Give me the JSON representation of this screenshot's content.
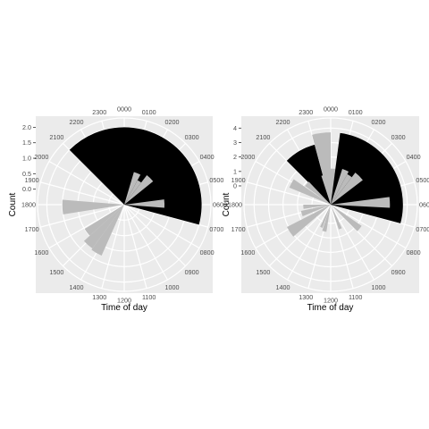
{
  "chart_data": [
    {
      "type": "bar",
      "coord": "polar",
      "xlabel": "Time of day",
      "ylabel": "Count",
      "ylim": [
        -0.5,
        2.3
      ],
      "yticks": [
        0,
        0.5,
        1,
        1.5,
        2
      ],
      "ytick_labels": [
        "0.0",
        "0.5",
        "1.0",
        "1.5",
        "2.0"
      ],
      "hour_labels": [
        "0000",
        "0100",
        "0200",
        "0300",
        "0400",
        "0500",
        "0600",
        "0700",
        "0800",
        "0900",
        "1000",
        "1100",
        "1200",
        "1300",
        "1400",
        "1500",
        "1600",
        "1700",
        "1800",
        "1900",
        "2000",
        "2100",
        "2200",
        "2300"
      ],
      "bars": [
        {
          "start": 0.0,
          "end": 7.0,
          "value": 2.0,
          "color": "#000000"
        },
        {
          "start": 1.1,
          "end": 1.9,
          "value": 0.6,
          "color": "#bbbbbb"
        },
        {
          "start": 1.9,
          "end": 2.5,
          "value": 0.4,
          "color": "#bbbbbb"
        },
        {
          "start": 2.5,
          "end": 3.4,
          "value": 0.7,
          "color": "#bbbbbb"
        },
        {
          "start": 5.5,
          "end": 6.3,
          "value": 0.8,
          "color": "#bbbbbb"
        },
        {
          "start": 13.6,
          "end": 14.4,
          "value": 1.3,
          "color": "#bbbbbb"
        },
        {
          "start": 14.4,
          "end": 15.2,
          "value": 1.25,
          "color": "#bbbbbb"
        },
        {
          "start": 15.2,
          "end": 15.9,
          "value": 1.0,
          "color": "#bbbbbb"
        },
        {
          "start": 17.4,
          "end": 18.3,
          "value": 1.5,
          "color": "#bbbbbb"
        },
        {
          "start": 21.0,
          "end": 24.0,
          "value": 2.0,
          "color": "#000000"
        }
      ]
    },
    {
      "type": "bar",
      "coord": "polar",
      "xlabel": "Time of day",
      "ylabel": "Count",
      "ylim": [
        -1.3,
        4.7
      ],
      "yticks": [
        0,
        1,
        2,
        3,
        4
      ],
      "ytick_labels": [
        "0",
        "1",
        "2",
        "3",
        "4"
      ],
      "hour_labels": [
        "0000",
        "0100",
        "0200",
        "0300",
        "0400",
        "0500",
        "0600",
        "0700",
        "0800",
        "0900",
        "1000",
        "1100",
        "1200",
        "1300",
        "1400",
        "1500",
        "1600",
        "1700",
        "1800",
        "1900",
        "2000",
        "2100",
        "2200",
        "2300"
      ],
      "bars": [
        {
          "start": 21.0,
          "end": 23.0,
          "value": 3.0,
          "color": "#000000"
        },
        {
          "start": 23.0,
          "end": 24.0,
          "value": 3.7,
          "color": "#bbbbbb"
        },
        {
          "start": 0.0,
          "end": 0.5,
          "value": 1.2,
          "color": "#bbbbbb"
        },
        {
          "start": 0.5,
          "end": 7.0,
          "value": 3.7,
          "color": "#000000"
        },
        {
          "start": 1.2,
          "end": 1.9,
          "value": 1.3,
          "color": "#bbbbbb"
        },
        {
          "start": 1.9,
          "end": 2.5,
          "value": 1.1,
          "color": "#bbbbbb"
        },
        {
          "start": 2.5,
          "end": 3.5,
          "value": 1.5,
          "color": "#bbbbbb"
        },
        {
          "start": 5.5,
          "end": 6.2,
          "value": 2.8,
          "color": "#bbbbbb"
        },
        {
          "start": 8.3,
          "end": 9.0,
          "value": 1.3,
          "color": "#bbbbbb"
        },
        {
          "start": 10.3,
          "end": 10.8,
          "value": 0.5,
          "color": "#bbbbbb"
        },
        {
          "start": 12.6,
          "end": 13.2,
          "value": 0.6,
          "color": "#bbbbbb"
        },
        {
          "start": 13.3,
          "end": 13.7,
          "value": 0.4,
          "color": "#bbbbbb"
        },
        {
          "start": 15.3,
          "end": 16.2,
          "value": 2.1,
          "color": "#bbbbbb"
        },
        {
          "start": 16.5,
          "end": 17.2,
          "value": 0.8,
          "color": "#bbbbbb"
        },
        {
          "start": 17.4,
          "end": 18.0,
          "value": 0.6,
          "color": "#bbbbbb"
        },
        {
          "start": 19.5,
          "end": 20.3,
          "value": 1.8,
          "color": "#bbbbbb"
        },
        {
          "start": 20.4,
          "end": 21.1,
          "value": 0.9,
          "color": "#bbbbbb"
        },
        {
          "start": 22.8,
          "end": 23.4,
          "value": 0.8,
          "color": "#bbbbbb"
        }
      ]
    }
  ]
}
